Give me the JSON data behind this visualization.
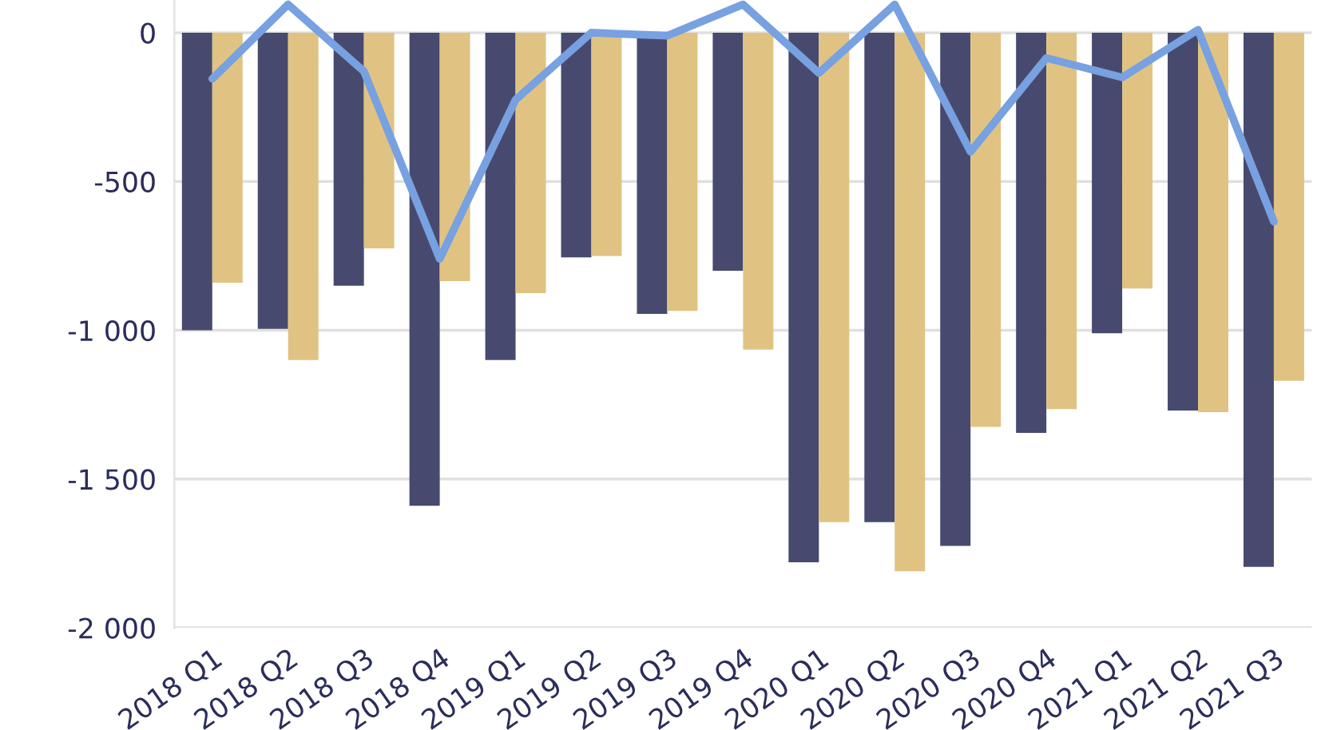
{
  "chart_data": {
    "type": "bar",
    "categories": [
      "2018 Q1",
      "2018 Q2",
      "2018 Q3",
      "2018 Q4",
      "2019 Q1",
      "2019 Q2",
      "2019 Q3",
      "2019 Q4",
      "2020 Q1",
      "2020 Q2",
      "2020 Q3",
      "2020 Q4",
      "2021 Q1",
      "2021 Q2",
      "2021 Q3"
    ],
    "series": [
      {
        "color": "#474a6e",
        "values": [
          -1000,
          -995,
          -850,
          -1590,
          -1100,
          -755,
          -945,
          -800,
          -1780,
          -1645,
          -1725,
          -1345,
          -1010,
          -1270,
          -1795
        ]
      },
      {
        "color": "#e0c383",
        "values": [
          -840,
          -1100,
          -725,
          -835,
          -875,
          -750,
          -935,
          -1065,
          -1645,
          -1810,
          -1325,
          -1265,
          -860,
          -1275,
          -1170
        ]
      },
      {
        "type": "line",
        "color": "#77a1e0",
        "values": [
          -155,
          95,
          -130,
          -760,
          -225,
          0,
          -10,
          95,
          -135,
          95,
          -400,
          -85,
          -150,
          10,
          -635
        ]
      }
    ],
    "ylim": [
      -2000,
      110
    ],
    "yticks": [
      {
        "value": -2000,
        "label": "-2 000"
      },
      {
        "value": -1500,
        "label": "-1 500"
      },
      {
        "value": -1000,
        "label": "-1 000"
      },
      -500,
      0
    ],
    "grid": "y",
    "legend": false
  }
}
